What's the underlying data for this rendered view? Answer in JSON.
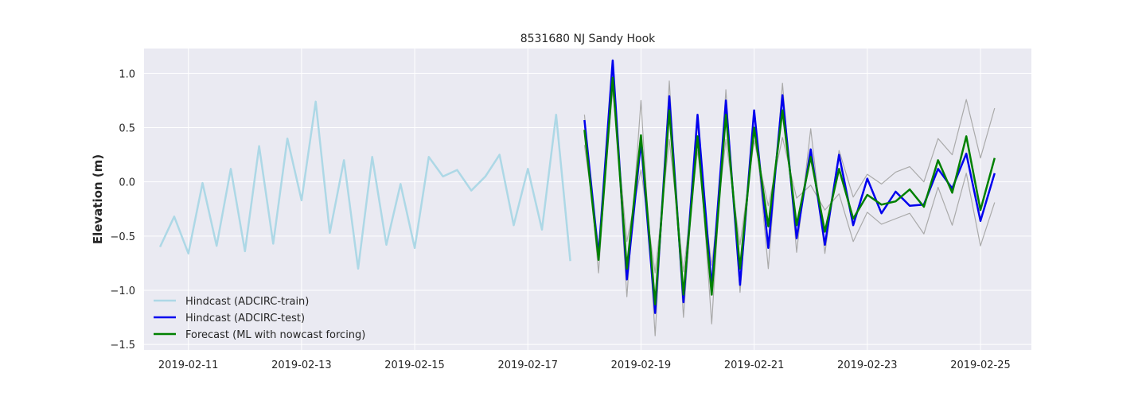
{
  "chart_data": {
    "type": "line",
    "title": "8531680 NJ Sandy Hook",
    "xlabel": "",
    "ylabel": "Elevation (m)",
    "xlim": [
      "2019-02-10T05:12",
      "2019-02-25T21:36"
    ],
    "ylim": [
      -1.55,
      1.23
    ],
    "grid": true,
    "legend_position": "lower-left",
    "x_ticks": [
      "2019-02-11",
      "2019-02-13",
      "2019-02-15",
      "2019-02-17",
      "2019-02-19",
      "2019-02-21",
      "2019-02-23",
      "2019-02-25"
    ],
    "y_ticks": [
      1.0,
      0.5,
      0.0,
      -0.5,
      -1.0,
      -1.5
    ],
    "y_tick_labels": [
      "1.0",
      "0.5",
      "0.0",
      "−0.5",
      "−1.0",
      "−1.5"
    ],
    "colors": {
      "background": "#eaeaf2",
      "grid": "#ffffff",
      "train": "#add8e6",
      "test": "#0000ee",
      "forecast": "#008000",
      "band": "#aaaaaa"
    },
    "series": [
      {
        "name": "Hindcast (ADCIRC-train)",
        "role": "train",
        "width": 2.5,
        "x": [
          "2019-02-10T12:00",
          "2019-02-10T18:00",
          "2019-02-11T00:00",
          "2019-02-11T06:00",
          "2019-02-11T12:00",
          "2019-02-11T18:00",
          "2019-02-12T00:00",
          "2019-02-12T06:00",
          "2019-02-12T12:00",
          "2019-02-12T18:00",
          "2019-02-13T00:00",
          "2019-02-13T06:00",
          "2019-02-13T12:00",
          "2019-02-13T18:00",
          "2019-02-14T00:00",
          "2019-02-14T06:00",
          "2019-02-14T12:00",
          "2019-02-14T18:00",
          "2019-02-15T00:00",
          "2019-02-15T06:00",
          "2019-02-15T12:00",
          "2019-02-15T18:00",
          "2019-02-16T00:00",
          "2019-02-16T06:00",
          "2019-02-16T12:00",
          "2019-02-16T18:00",
          "2019-02-17T00:00",
          "2019-02-17T06:00",
          "2019-02-17T12:00",
          "2019-02-17T18:00"
        ],
        "y": [
          -0.6,
          -0.32,
          -0.66,
          -0.01,
          -0.59,
          0.12,
          -0.64,
          0.33,
          -0.57,
          0.4,
          -0.17,
          0.74,
          -0.47,
          0.2,
          -0.8,
          0.23,
          -0.58,
          -0.02,
          -0.61,
          0.23,
          0.05,
          0.11,
          -0.08,
          0.05,
          0.25,
          -0.4,
          0.12,
          -0.44,
          0.62,
          -0.73
        ]
      },
      {
        "name": "Hindcast (ADCIRC-test)",
        "role": "test",
        "width": 2.5,
        "x": [
          "2019-02-18T00:00",
          "2019-02-18T06:00",
          "2019-02-18T12:00",
          "2019-02-18T18:00",
          "2019-02-19T00:00",
          "2019-02-19T06:00",
          "2019-02-19T12:00",
          "2019-02-19T18:00",
          "2019-02-20T00:00",
          "2019-02-20T06:00",
          "2019-02-20T12:00",
          "2019-02-20T18:00",
          "2019-02-21T00:00",
          "2019-02-21T06:00",
          "2019-02-21T12:00",
          "2019-02-21T18:00",
          "2019-02-22T00:00",
          "2019-02-22T06:00",
          "2019-02-22T12:00",
          "2019-02-22T18:00",
          "2019-02-23T00:00",
          "2019-02-23T06:00",
          "2019-02-23T12:00",
          "2019-02-23T18:00",
          "2019-02-24T00:00",
          "2019-02-24T06:00",
          "2019-02-24T12:00",
          "2019-02-24T18:00",
          "2019-02-25T00:00",
          "2019-02-25T06:00"
        ],
        "y": [
          0.57,
          -0.68,
          1.12,
          -0.9,
          0.37,
          -1.21,
          0.79,
          -1.11,
          0.62,
          -0.97,
          0.75,
          -0.95,
          0.66,
          -0.61,
          0.8,
          -0.52,
          0.3,
          -0.58,
          0.25,
          -0.4,
          0.03,
          -0.29,
          -0.09,
          -0.22,
          -0.21,
          0.12,
          -0.06,
          0.26,
          -0.36,
          0.08
        ]
      },
      {
        "name": "Forecast (ML with nowcast forcing)",
        "role": "forecast",
        "width": 2.5,
        "x": [
          "2019-02-18T00:00",
          "2019-02-18T06:00",
          "2019-02-18T12:00",
          "2019-02-18T18:00",
          "2019-02-19T00:00",
          "2019-02-19T06:00",
          "2019-02-19T12:00",
          "2019-02-19T18:00",
          "2019-02-20T00:00",
          "2019-02-20T06:00",
          "2019-02-20T12:00",
          "2019-02-20T18:00",
          "2019-02-21T00:00",
          "2019-02-21T06:00",
          "2019-02-21T12:00",
          "2019-02-21T18:00",
          "2019-02-22T00:00",
          "2019-02-22T06:00",
          "2019-02-22T12:00",
          "2019-02-22T18:00",
          "2019-02-23T00:00",
          "2019-02-23T06:00",
          "2019-02-23T12:00",
          "2019-02-23T18:00",
          "2019-02-24T00:00",
          "2019-02-24T06:00",
          "2019-02-24T12:00",
          "2019-02-24T18:00",
          "2019-02-25T00:00",
          "2019-02-25T06:00"
        ],
        "y": [
          0.48,
          -0.72,
          0.96,
          -0.8,
          0.43,
          -1.13,
          0.66,
          -1.04,
          0.42,
          -1.04,
          0.62,
          -0.8,
          0.5,
          -0.41,
          0.66,
          -0.4,
          0.23,
          -0.46,
          0.12,
          -0.34,
          -0.12,
          -0.21,
          -0.18,
          -0.07,
          -0.23,
          0.2,
          -0.1,
          0.42,
          -0.26,
          0.22
        ]
      },
      {
        "role": "band",
        "width": 1.2,
        "x": [
          "2019-02-18T00:00",
          "2019-02-18T06:00",
          "2019-02-18T12:00",
          "2019-02-18T18:00",
          "2019-02-19T00:00",
          "2019-02-19T06:00",
          "2019-02-19T12:00",
          "2019-02-19T18:00",
          "2019-02-20T00:00",
          "2019-02-20T06:00",
          "2019-02-20T12:00",
          "2019-02-20T18:00",
          "2019-02-21T00:00",
          "2019-02-21T06:00",
          "2019-02-21T12:00",
          "2019-02-21T18:00",
          "2019-02-22T00:00",
          "2019-02-22T06:00",
          "2019-02-22T12:00",
          "2019-02-22T18:00",
          "2019-02-23T00:00",
          "2019-02-23T06:00",
          "2019-02-23T12:00",
          "2019-02-23T18:00",
          "2019-02-24T00:00",
          "2019-02-24T06:00",
          "2019-02-24T12:00",
          "2019-02-24T18:00",
          "2019-02-25T00:00",
          "2019-02-25T06:00"
        ],
        "y": [
          0.62,
          -0.84,
          1.07,
          -1.06,
          0.75,
          -1.42,
          0.93,
          -1.25,
          0.55,
          -1.31,
          0.85,
          -1.02,
          0.62,
          -0.8,
          0.91,
          -0.65,
          0.49,
          -0.66,
          0.29,
          -0.14,
          0.07,
          -0.02,
          0.09,
          0.14,
          0.0,
          0.4,
          0.25,
          0.76,
          0.22,
          0.68
        ]
      },
      {
        "role": "band",
        "width": 1.2,
        "x": [
          "2019-02-18T00:00",
          "2019-02-18T06:00",
          "2019-02-18T12:00",
          "2019-02-18T18:00",
          "2019-02-19T00:00",
          "2019-02-19T06:00",
          "2019-02-19T12:00",
          "2019-02-19T18:00",
          "2019-02-20T00:00",
          "2019-02-20T06:00",
          "2019-02-20T12:00",
          "2019-02-20T18:00",
          "2019-02-21T00:00",
          "2019-02-21T06:00",
          "2019-02-21T12:00",
          "2019-02-21T18:00",
          "2019-02-22T00:00",
          "2019-02-22T06:00",
          "2019-02-22T12:00",
          "2019-02-22T18:00",
          "2019-02-23T00:00",
          "2019-02-23T06:00",
          "2019-02-23T12:00",
          "2019-02-23T18:00",
          "2019-02-24T00:00",
          "2019-02-24T06:00",
          "2019-02-24T12:00",
          "2019-02-24T18:00",
          "2019-02-25T00:00",
          "2019-02-25T06:00"
        ],
        "y": [
          0.34,
          -0.6,
          0.85,
          -0.55,
          0.11,
          -0.84,
          0.39,
          -0.83,
          0.29,
          -0.77,
          0.39,
          -0.58,
          0.38,
          -0.22,
          0.41,
          -0.15,
          -0.03,
          -0.26,
          -0.11,
          -0.55,
          -0.28,
          -0.39,
          -0.34,
          -0.29,
          -0.48,
          -0.05,
          -0.4,
          0.08,
          -0.59,
          -0.19
        ]
      }
    ]
  }
}
